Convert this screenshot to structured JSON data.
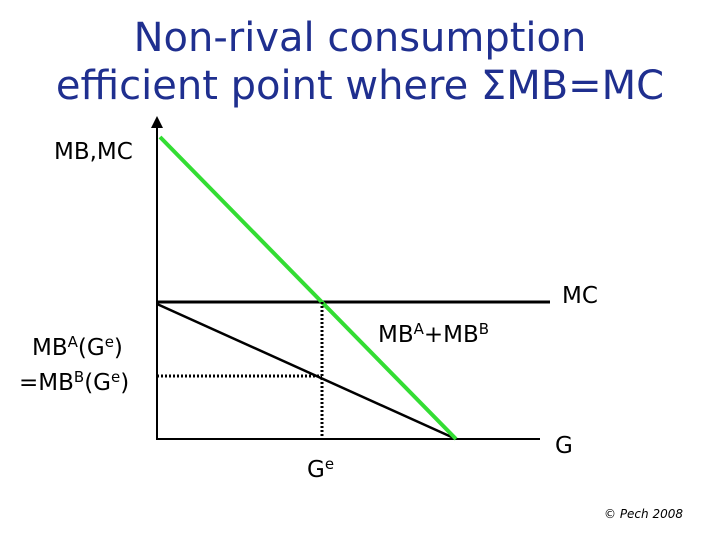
{
  "title": {
    "line1": "Non-rival consumption",
    "line2": "efficient point where ΣMB=MC"
  },
  "axes": {
    "y_label": "MB,MC",
    "x_label": "G"
  },
  "curves": {
    "mc_label": "MC",
    "sum_label_base1": "MB",
    "sum_label_sup1": "A",
    "sum_label_mid": "+MB",
    "sum_label_sup2": "B"
  },
  "marks": {
    "mb_base1": "MB",
    "mb_sup1": "A",
    "mb_open1": "(G",
    "mb_sup2": "e",
    "mb_close1": ")",
    "mb_base2": "=MB",
    "mb_sup3": "B",
    "mb_open2": "(G",
    "mb_sup4": "e",
    "mb_close2": ")",
    "ge_base": "G",
    "ge_sup": "e"
  },
  "colors": {
    "title": "#1f2f8f",
    "sum_mb_line": "#33dd33",
    "lines": "#000000"
  },
  "footer": {
    "copyright": "© Pech 2008"
  }
}
